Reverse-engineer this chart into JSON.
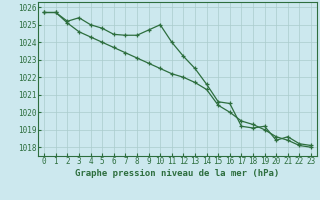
{
  "title": "Graphe pression niveau de la mer (hPa)",
  "background_color": "#cce8ee",
  "grid_color": "#aacccc",
  "line_color": "#2d6e3e",
  "xlim": [
    -0.5,
    23.5
  ],
  "ylim": [
    1017.5,
    1026.3
  ],
  "yticks": [
    1018,
    1019,
    1020,
    1021,
    1022,
    1023,
    1024,
    1025,
    1026
  ],
  "xticks": [
    0,
    1,
    2,
    3,
    4,
    5,
    6,
    7,
    8,
    9,
    10,
    11,
    12,
    13,
    14,
    15,
    16,
    17,
    18,
    19,
    20,
    21,
    22,
    23
  ],
  "series1_x": [
    0,
    1,
    2,
    3,
    4,
    5,
    6,
    7,
    8,
    9,
    10,
    11,
    12,
    13,
    14,
    15,
    16,
    17,
    18,
    19,
    20,
    21,
    22,
    23
  ],
  "series1_y": [
    1025.7,
    1025.7,
    1025.2,
    1025.4,
    1025.0,
    1024.8,
    1024.45,
    1024.4,
    1024.4,
    1024.7,
    1025.0,
    1024.0,
    1023.2,
    1022.5,
    1021.6,
    1020.6,
    1020.5,
    1019.2,
    1019.1,
    1019.2,
    1018.4,
    1018.6,
    1018.2,
    1018.1
  ],
  "series2_x": [
    0,
    1,
    2,
    3,
    4,
    5,
    6,
    7,
    8,
    9,
    10,
    11,
    12,
    13,
    14,
    15,
    16,
    17,
    18,
    19,
    20,
    21,
    22,
    23
  ],
  "series2_y": [
    1025.7,
    1025.7,
    1025.1,
    1024.6,
    1024.3,
    1024.0,
    1023.7,
    1023.4,
    1023.1,
    1022.8,
    1022.5,
    1022.2,
    1022.0,
    1021.7,
    1021.3,
    1020.4,
    1020.0,
    1019.5,
    1019.3,
    1019.0,
    1018.6,
    1018.4,
    1018.1,
    1018.0
  ],
  "title_fontsize": 6.5,
  "tick_fontsize": 5.5
}
